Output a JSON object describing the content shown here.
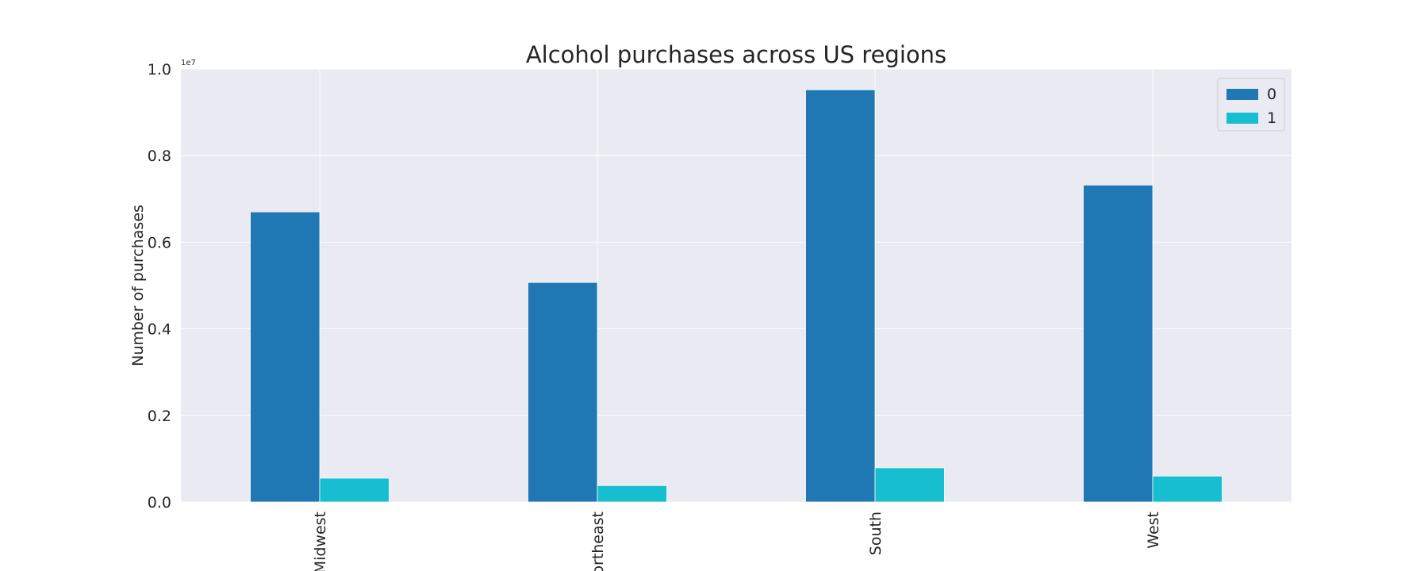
{
  "chart_data": {
    "type": "bar",
    "title": "Alcohol purchases across US regions",
    "xlabel": "",
    "ylabel": "Number of purchases",
    "y_offset_label": "1e7",
    "categories": [
      "Midwest",
      "Northeast",
      "South",
      "West"
    ],
    "series": [
      {
        "name": "0",
        "color": "#1f77b4",
        "values": [
          6700000,
          5070000,
          9520000,
          7320000
        ]
      },
      {
        "name": "1",
        "color": "#17becf",
        "values": [
          550000,
          380000,
          790000,
          600000
        ]
      }
    ],
    "ylim": [
      0,
      10000000
    ],
    "y_ticks": [
      0,
      2000000,
      4000000,
      6000000,
      8000000,
      10000000
    ],
    "y_tick_labels": [
      "0.0",
      "0.2",
      "0.4",
      "0.6",
      "0.8",
      "1.0"
    ],
    "grid": true,
    "legend_position": "top-right",
    "plot_background": "#eaeaf2",
    "grid_color": "#ffffff"
  }
}
